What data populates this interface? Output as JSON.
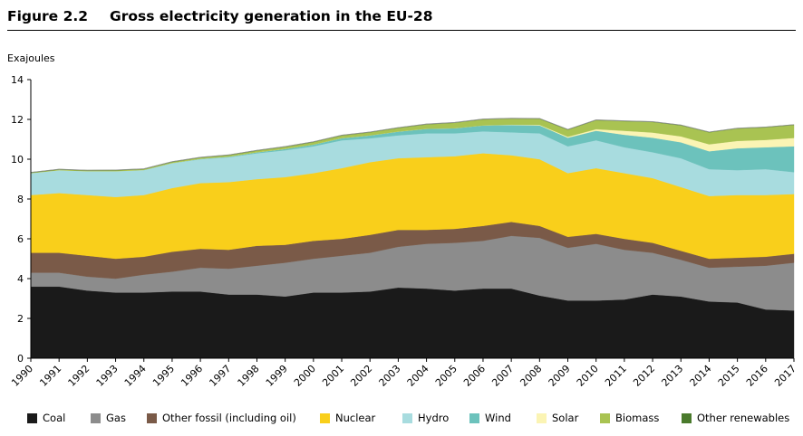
{
  "figure": {
    "number": "Figure 2.2",
    "title": "Gross electricity generation in the EU-28"
  },
  "chart_data": {
    "type": "area",
    "stacked": true,
    "title": "Gross electricity generation in the EU-28",
    "ylabel": "Exajoules",
    "xlabel": "",
    "ylim": [
      0,
      14
    ],
    "yticks": [
      0,
      2,
      4,
      6,
      8,
      10,
      12,
      14
    ],
    "grid": false,
    "legend_placement": "bottom",
    "x": [
      "1990",
      "1991",
      "1992",
      "1993",
      "1994",
      "1995",
      "1996",
      "1997",
      "1998",
      "1999",
      "2000",
      "2001",
      "2002",
      "2003",
      "2004",
      "2005",
      "2006",
      "2007",
      "2008",
      "2009",
      "2010",
      "2011",
      "2012",
      "2013",
      "2014",
      "2015",
      "2016",
      "2017"
    ],
    "series": [
      {
        "name": "Coal",
        "color": "#1a1a1a",
        "values": [
          3.6,
          3.6,
          3.4,
          3.3,
          3.3,
          3.35,
          3.35,
          3.2,
          3.2,
          3.1,
          3.3,
          3.3,
          3.35,
          3.55,
          3.5,
          3.4,
          3.5,
          3.5,
          3.15,
          2.9,
          2.9,
          2.95,
          3.2,
          3.1,
          2.85,
          2.8,
          2.45,
          2.4
        ]
      },
      {
        "name": "Gas",
        "color": "#8c8c8c",
        "values": [
          0.7,
          0.7,
          0.7,
          0.7,
          0.9,
          1.0,
          1.2,
          1.3,
          1.45,
          1.7,
          1.7,
          1.85,
          1.95,
          2.05,
          2.25,
          2.4,
          2.4,
          2.65,
          2.9,
          2.65,
          2.85,
          2.5,
          2.1,
          1.85,
          1.7,
          1.8,
          2.2,
          2.4
        ]
      },
      {
        "name": "Other fossil (including oil)",
        "color": "#7a5a48",
        "values": [
          1.0,
          1.0,
          1.05,
          1.0,
          0.9,
          1.0,
          0.95,
          0.95,
          1.0,
          0.9,
          0.9,
          0.85,
          0.9,
          0.85,
          0.7,
          0.7,
          0.75,
          0.7,
          0.6,
          0.55,
          0.5,
          0.55,
          0.5,
          0.45,
          0.45,
          0.45,
          0.45,
          0.45
        ]
      },
      {
        "name": "Nuclear",
        "color": "#f9cf1b",
        "values": [
          2.9,
          3.0,
          3.05,
          3.1,
          3.1,
          3.2,
          3.3,
          3.4,
          3.35,
          3.4,
          3.4,
          3.55,
          3.65,
          3.6,
          3.65,
          3.65,
          3.65,
          3.35,
          3.35,
          3.2,
          3.3,
          3.3,
          3.25,
          3.2,
          3.15,
          3.15,
          3.1,
          3.0
        ]
      },
      {
        "name": "Hydro",
        "color": "#a8dcdf",
        "values": [
          1.1,
          1.15,
          1.2,
          1.3,
          1.25,
          1.25,
          1.2,
          1.25,
          1.3,
          1.35,
          1.35,
          1.4,
          1.2,
          1.15,
          1.2,
          1.15,
          1.1,
          1.15,
          1.3,
          1.35,
          1.4,
          1.3,
          1.3,
          1.45,
          1.35,
          1.25,
          1.3,
          1.1
        ]
      },
      {
        "name": "Wind",
        "color": "#6cc2bc",
        "values": [
          0.0,
          0.0,
          0.0,
          0.0,
          0.01,
          0.01,
          0.02,
          0.03,
          0.05,
          0.07,
          0.09,
          0.11,
          0.15,
          0.19,
          0.23,
          0.26,
          0.3,
          0.37,
          0.4,
          0.43,
          0.48,
          0.63,
          0.73,
          0.8,
          0.9,
          1.1,
          1.1,
          1.3
        ]
      },
      {
        "name": "Solar",
        "color": "#fbf4b4",
        "values": [
          0,
          0,
          0,
          0,
          0,
          0,
          0,
          0,
          0,
          0,
          0,
          0,
          0,
          0,
          0,
          0,
          0,
          0.02,
          0.03,
          0.05,
          0.08,
          0.2,
          0.26,
          0.3,
          0.35,
          0.37,
          0.37,
          0.42
        ]
      },
      {
        "name": "Biomass",
        "color": "#a9c352",
        "values": [
          0.02,
          0.03,
          0.03,
          0.04,
          0.04,
          0.05,
          0.06,
          0.07,
          0.08,
          0.1,
          0.12,
          0.13,
          0.15,
          0.18,
          0.22,
          0.27,
          0.3,
          0.3,
          0.3,
          0.35,
          0.45,
          0.48,
          0.53,
          0.55,
          0.6,
          0.62,
          0.63,
          0.65
        ]
      },
      {
        "name": "Other renewables",
        "color": "#4a7a2c",
        "values": [
          0.02,
          0.02,
          0.02,
          0.02,
          0.02,
          0.02,
          0.02,
          0.02,
          0.02,
          0.02,
          0.02,
          0.02,
          0.02,
          0.02,
          0.02,
          0.02,
          0.02,
          0.02,
          0.02,
          0.02,
          0.02,
          0.02,
          0.02,
          0.02,
          0.02,
          0.02,
          0.02,
          0.02
        ]
      }
    ]
  }
}
